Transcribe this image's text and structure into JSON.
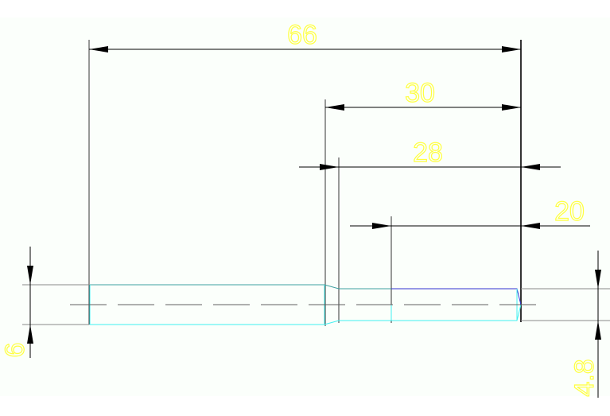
{
  "drawing": {
    "colors": {
      "background": "#fbfffb",
      "dimension": "#000000",
      "extension": "#707070",
      "outline": "#3fa0a0",
      "edge_cyan": "#40f0f0",
      "edge_blue": "#3030d0",
      "text": "#ffff40",
      "centerline": "#606060"
    },
    "dimensions": {
      "overall_length": "66",
      "length_30": "30",
      "length_28": "28",
      "length_20": "20",
      "diameter_large": "6",
      "diameter_small": "4.8"
    }
  }
}
